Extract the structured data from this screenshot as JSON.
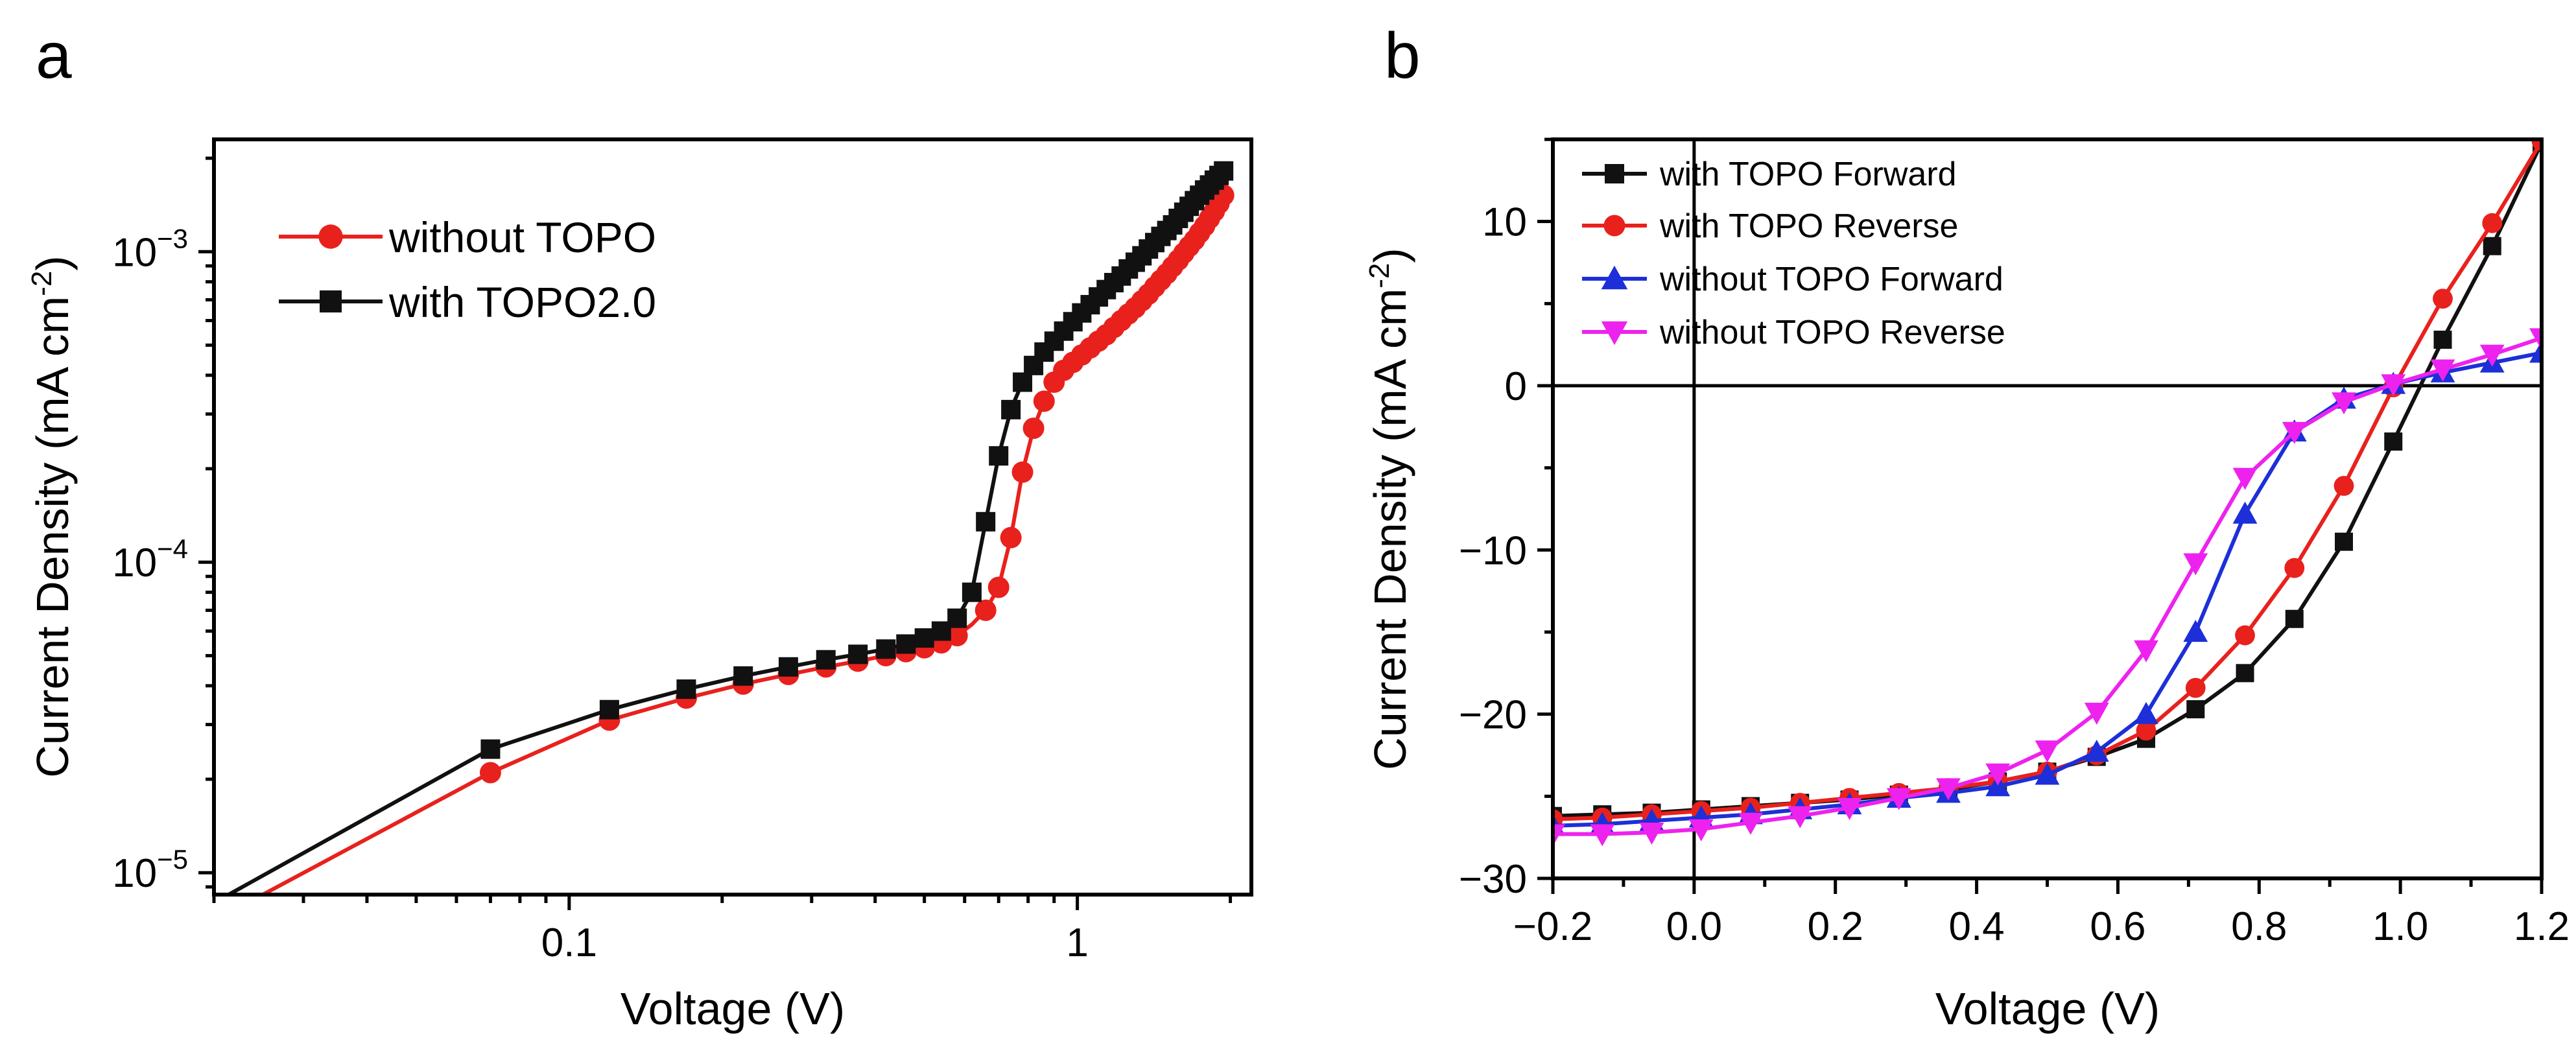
{
  "figure": {
    "panel_a_label": "a",
    "panel_b_label": "b"
  },
  "chart_data": [
    {
      "panel": "a",
      "type": "line",
      "xscale": "log",
      "yscale": "log",
      "xlabel": "Voltage (V)",
      "ylabel": "Current Density (mA cm",
      "ylabel_sup": "-2",
      "ylabel_close": ")",
      "xlim": [
        0.02,
        2.2
      ],
      "ylim": [
        8.5e-06,
        0.0023
      ],
      "xticks": [
        {
          "value": 0.1,
          "label": "0.1"
        },
        {
          "value": 1,
          "label": "1"
        }
      ],
      "yticks": [
        {
          "value": 1e-05,
          "base": "10",
          "exp": "−5"
        },
        {
          "value": 0.0001,
          "base": "10",
          "exp": "−4"
        },
        {
          "value": 0.001,
          "base": "10",
          "exp": "−3"
        }
      ],
      "legend_position": "top-left",
      "series": [
        {
          "name": "without TOPO",
          "color": "#e8211d",
          "marker": "circle",
          "x": [
            0.02,
            0.07,
            0.12,
            0.17,
            0.22,
            0.27,
            0.32,
            0.37,
            0.42,
            0.46,
            0.5,
            0.54,
            0.58,
            0.62,
            0.66,
            0.7,
            0.74,
            0.78,
            0.82,
            0.86,
            0.9,
            0.94,
            0.98,
            1.02,
            1.06,
            1.1,
            1.14,
            1.18,
            1.22,
            1.26,
            1.3,
            1.34,
            1.38,
            1.42,
            1.46,
            1.5,
            1.54,
            1.58,
            1.62,
            1.66,
            1.7,
            1.74,
            1.78,
            1.82,
            1.86,
            1.9,
            1.94
          ],
          "y": [
            7e-06,
            2.1e-05,
            3.1e-05,
            3.65e-05,
            4.05e-05,
            4.35e-05,
            4.6e-05,
            4.8e-05,
            5e-05,
            5.15e-05,
            5.3e-05,
            5.5e-05,
            5.8e-05,
            6.3e-05,
            7e-05,
            8.3e-05,
            0.00012,
            0.000195,
            0.00027,
            0.00033,
            0.00038,
            0.000415,
            0.00044,
            0.000465,
            0.00049,
            0.000515,
            0.00054,
            0.00057,
            0.0006,
            0.00063,
            0.00066,
            0.000695,
            0.00073,
            0.00077,
            0.00081,
            0.00085,
            0.000895,
            0.00094,
            0.00099,
            0.00104,
            0.00109,
            0.00115,
            0.00121,
            0.00128,
            0.00135,
            0.00143,
            0.00152
          ],
          "marker_x": [
            0.07,
            0.12,
            0.17,
            0.22,
            0.27,
            0.32,
            0.37,
            0.42,
            0.46,
            0.5,
            0.54,
            0.58,
            0.66,
            0.7,
            0.74,
            0.78,
            0.82,
            0.86,
            0.9,
            0.94,
            0.98,
            1.02,
            1.06,
            1.1,
            1.14,
            1.18,
            1.22,
            1.26,
            1.3,
            1.34,
            1.38,
            1.42,
            1.46,
            1.5,
            1.54,
            1.58,
            1.62,
            1.66,
            1.7,
            1.74,
            1.78,
            1.82,
            1.86,
            1.9,
            1.94
          ]
        },
        {
          "name": "with TOPO2.0",
          "color": "#111111",
          "marker": "square",
          "x": [
            0.02,
            0.07,
            0.12,
            0.17,
            0.22,
            0.27,
            0.32,
            0.37,
            0.42,
            0.46,
            0.5,
            0.54,
            0.58,
            0.62,
            0.66,
            0.7,
            0.74,
            0.78,
            0.82,
            0.86,
            0.9,
            0.94,
            0.98,
            1.02,
            1.06,
            1.1,
            1.14,
            1.18,
            1.22,
            1.26,
            1.3,
            1.34,
            1.38,
            1.42,
            1.46,
            1.5,
            1.54,
            1.58,
            1.62,
            1.66,
            1.7,
            1.74,
            1.78,
            1.82,
            1.86,
            1.9,
            1.94
          ],
          "y": [
            8e-06,
            2.5e-05,
            3.35e-05,
            3.9e-05,
            4.3e-05,
            4.6e-05,
            4.85e-05,
            5.05e-05,
            5.25e-05,
            5.45e-05,
            5.7e-05,
            6e-05,
            6.6e-05,
            8e-05,
            0.000135,
            0.00022,
            0.00031,
            0.00038,
            0.00043,
            0.000475,
            0.000515,
            0.000555,
            0.000595,
            0.000635,
            0.000675,
            0.000715,
            0.000755,
            0.000795,
            0.000835,
            0.00088,
            0.000925,
            0.00097,
            0.00102,
            0.00107,
            0.00112,
            0.00117,
            0.00122,
            0.00128,
            0.00134,
            0.0014,
            0.00146,
            0.00152,
            0.00158,
            0.00164,
            0.0017,
            0.00176,
            0.00182
          ],
          "marker_x": [
            0.02,
            0.07,
            0.12,
            0.17,
            0.22,
            0.27,
            0.32,
            0.37,
            0.42,
            0.46,
            0.5,
            0.54,
            0.58,
            0.62,
            0.66,
            0.7,
            0.74,
            0.78,
            0.82,
            0.86,
            0.9,
            0.94,
            0.98,
            1.02,
            1.06,
            1.1,
            1.14,
            1.18,
            1.22,
            1.26,
            1.3,
            1.34,
            1.38,
            1.42,
            1.46,
            1.5,
            1.54,
            1.58,
            1.62,
            1.66,
            1.7,
            1.74,
            1.78,
            1.82,
            1.86,
            1.9,
            1.94
          ]
        }
      ]
    },
    {
      "panel": "b",
      "type": "line",
      "xlabel": "Voltage (V)",
      "ylabel": "Current Density (mA cm",
      "ylabel_sup": "-2",
      "ylabel_close": ")",
      "xlim": [
        -0.2,
        1.2
      ],
      "ylim": [
        -30,
        15
      ],
      "xticks": [
        {
          "value": -0.2,
          "label": "−0.2"
        },
        {
          "value": 0.0,
          "label": "0.0"
        },
        {
          "value": 0.2,
          "label": "0.2"
        },
        {
          "value": 0.4,
          "label": "0.4"
        },
        {
          "value": 0.6,
          "label": "0.6"
        },
        {
          "value": 0.8,
          "label": "0.8"
        },
        {
          "value": 1.0,
          "label": "1.0"
        },
        {
          "value": 1.2,
          "label": "1.2"
        }
      ],
      "yticks": [
        {
          "value": -30,
          "label": "−30"
        },
        {
          "value": -20,
          "label": "−20"
        },
        {
          "value": -10,
          "label": "−10"
        },
        {
          "value": 0,
          "label": "0"
        },
        {
          "value": 10,
          "label": "10"
        }
      ],
      "reference_lines": {
        "x": 0,
        "y": 0
      },
      "legend_position": "top-left",
      "series": [
        {
          "name": "with TOPO Forward",
          "color": "#111111",
          "marker": "square",
          "x": [
            -0.2,
            -0.13,
            -0.06,
            0.01,
            0.08,
            0.15,
            0.22,
            0.29,
            0.36,
            0.43,
            0.5,
            0.57,
            0.64,
            0.71,
            0.78,
            0.85,
            0.92,
            0.99,
            1.06,
            1.13,
            1.2
          ],
          "y": [
            -26.2,
            -26.1,
            -26.0,
            -25.8,
            -25.6,
            -25.4,
            -25.2,
            -24.9,
            -24.6,
            -24.1,
            -23.5,
            -22.6,
            -21.5,
            -19.7,
            -17.5,
            -14.2,
            -9.5,
            -3.4,
            2.8,
            8.5,
            14.8
          ]
        },
        {
          "name": "with TOPO Reverse",
          "color": "#e8211d",
          "marker": "circle",
          "x": [
            -0.2,
            -0.13,
            -0.06,
            0.01,
            0.08,
            0.15,
            0.22,
            0.29,
            0.36,
            0.43,
            0.5,
            0.57,
            0.64,
            0.71,
            0.78,
            0.85,
            0.92,
            0.99,
            1.06,
            1.13,
            1.2
          ],
          "y": [
            -26.4,
            -26.3,
            -26.1,
            -25.9,
            -25.7,
            -25.4,
            -25.1,
            -24.8,
            -24.5,
            -24.1,
            -23.5,
            -22.5,
            -21.0,
            -18.4,
            -15.2,
            -11.1,
            -6.1,
            -0.1,
            5.3,
            9.9,
            14.9
          ]
        },
        {
          "name": "without TOPO Forward",
          "color": "#1c2fd8",
          "marker": "triangle-up",
          "x": [
            -0.2,
            -0.13,
            -0.06,
            0.01,
            0.08,
            0.15,
            0.22,
            0.29,
            0.36,
            0.43,
            0.5,
            0.57,
            0.64,
            0.71,
            0.78,
            0.85,
            0.92,
            0.99,
            1.06,
            1.13,
            1.2
          ],
          "y": [
            -26.8,
            -26.7,
            -26.5,
            -26.3,
            -26.1,
            -25.8,
            -25.5,
            -25.1,
            -24.8,
            -24.4,
            -23.7,
            -22.3,
            -20.0,
            -15.0,
            -7.8,
            -2.8,
            -0.8,
            0.1,
            0.8,
            1.4,
            2.0
          ]
        },
        {
          "name": "without TOPO Reverse",
          "color": "#ee22ee",
          "marker": "triangle-down",
          "x": [
            -0.2,
            -0.13,
            -0.06,
            0.01,
            0.08,
            0.15,
            0.22,
            0.29,
            0.36,
            0.43,
            0.5,
            0.57,
            0.64,
            0.71,
            0.78,
            0.85,
            0.92,
            0.99,
            1.06,
            1.13,
            1.2
          ],
          "y": [
            -27.3,
            -27.3,
            -27.2,
            -27.0,
            -26.6,
            -26.2,
            -25.7,
            -25.1,
            -24.5,
            -23.6,
            -22.2,
            -19.9,
            -16.1,
            -10.8,
            -5.6,
            -2.8,
            -1.0,
            0.1,
            1.0,
            1.9,
            2.9
          ]
        }
      ]
    }
  ]
}
